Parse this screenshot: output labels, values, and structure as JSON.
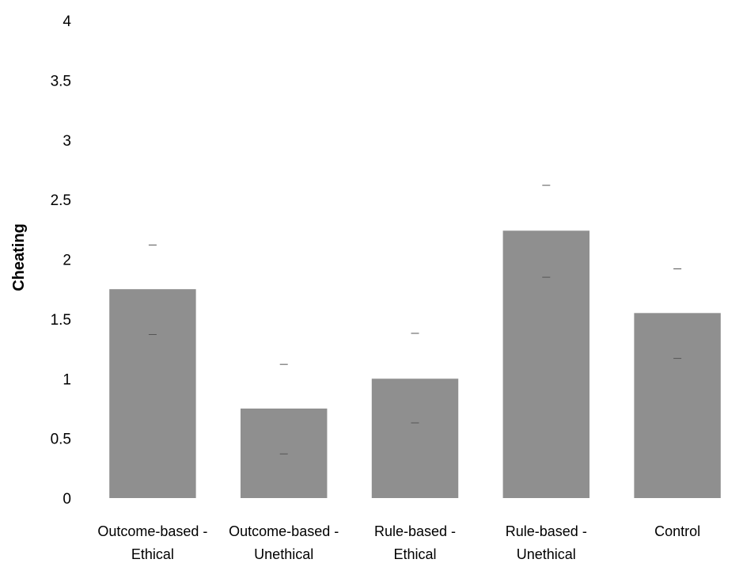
{
  "chart_data": {
    "type": "bar",
    "title": "",
    "xlabel": "",
    "ylabel": "Cheating",
    "ylim": [
      0,
      4
    ],
    "yticks": [
      "0",
      "0.5",
      "1",
      "1.5",
      "2",
      "2.5",
      "3",
      "3.5",
      "4"
    ],
    "grid": false,
    "categories": [
      [
        "Outcome-based -",
        "Ethical"
      ],
      [
        "Outcome-based -",
        "Unethical"
      ],
      [
        "Rule-based -",
        "Ethical"
      ],
      [
        "Rule-based -",
        "Unethical"
      ],
      [
        "Control"
      ]
    ],
    "values": [
      1.75,
      0.75,
      1.0,
      2.24,
      1.55
    ],
    "error_low": [
      1.37,
      0.37,
      0.63,
      1.85,
      1.17
    ],
    "error_high": [
      2.12,
      1.12,
      1.38,
      2.62,
      1.92
    ],
    "bar_color": "#8f8f8f",
    "error_color": "#555555"
  }
}
